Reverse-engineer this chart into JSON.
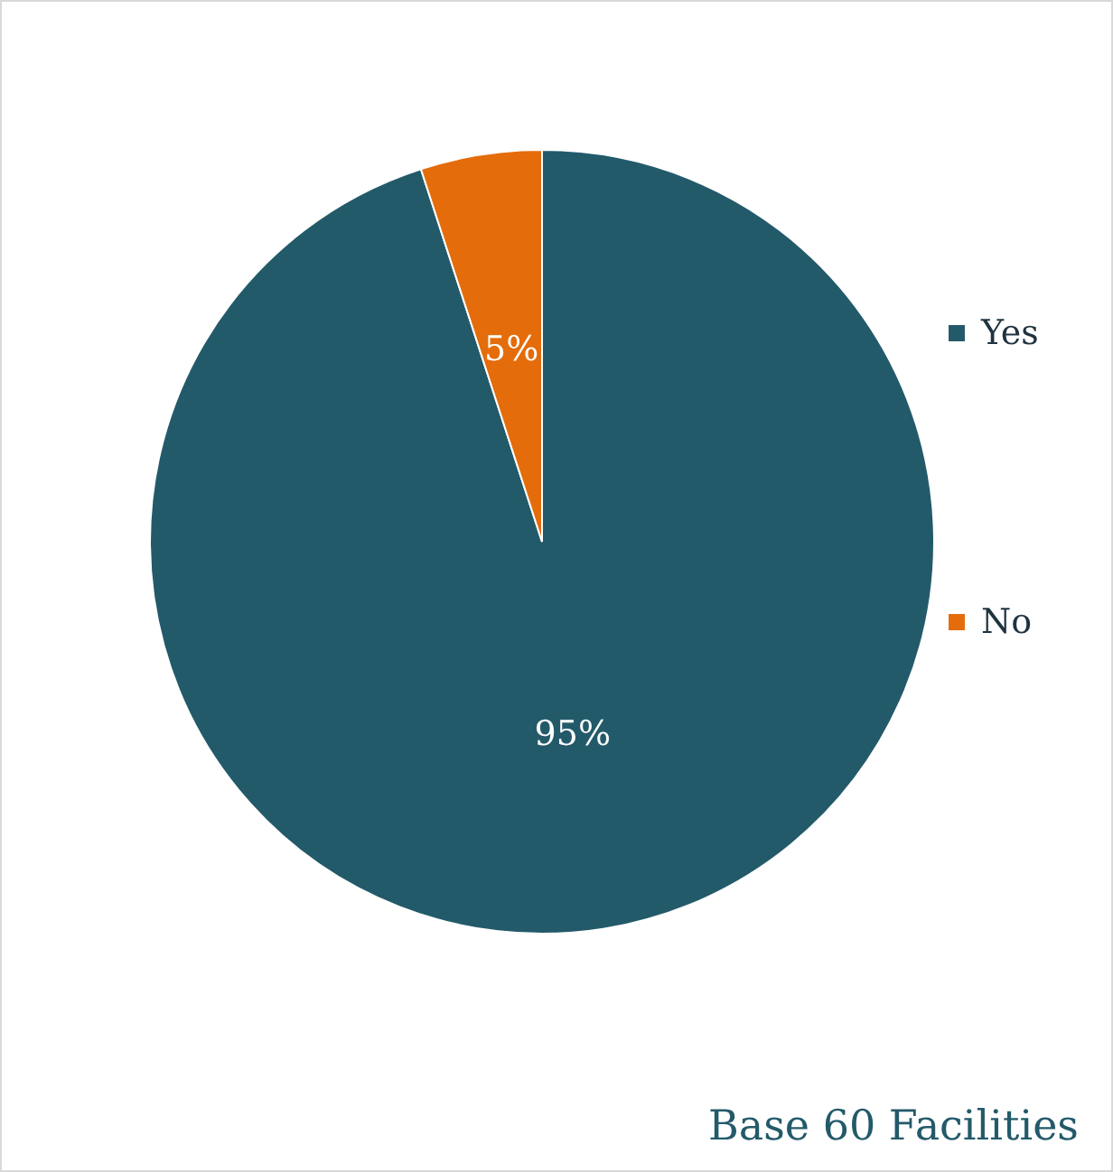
{
  "chart_data": {
    "type": "pie",
    "categories": [
      "Yes",
      "No"
    ],
    "values": [
      95,
      5
    ],
    "colors": [
      "#235a6a",
      "#e46c0a"
    ],
    "value_labels": [
      "95%",
      "5%"
    ],
    "legend": "right",
    "annotations": [
      "Base 60 Facilities"
    ]
  }
}
